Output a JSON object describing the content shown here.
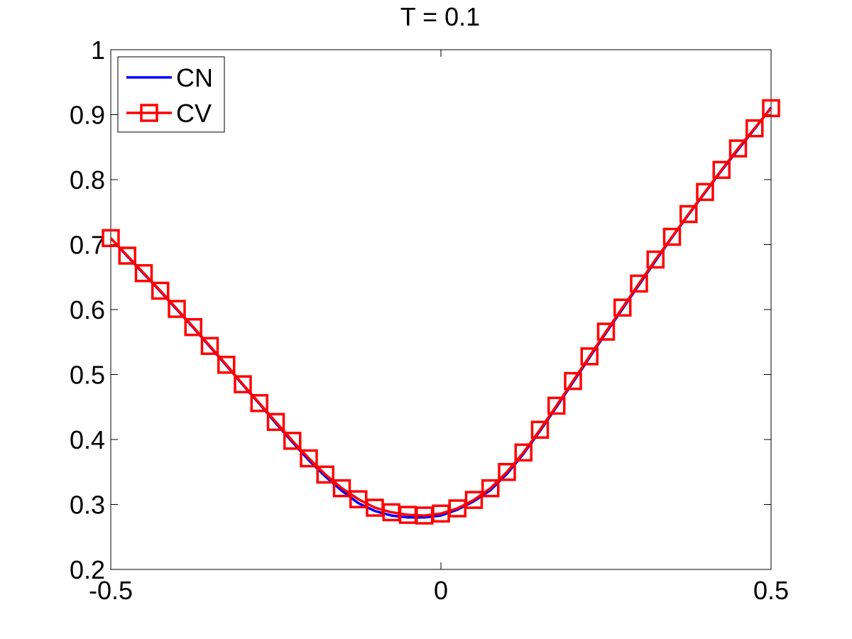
{
  "chart_data": {
    "type": "line",
    "title": "T = 0.1",
    "xlabel": "",
    "ylabel": "",
    "xlim": [
      -0.5,
      0.5
    ],
    "ylim": [
      0.2,
      1.0
    ],
    "xticks": [
      -0.5,
      0,
      0.5
    ],
    "xtick_labels": [
      "-0.5",
      "0",
      "0.5"
    ],
    "yticks": [
      0.2,
      0.3,
      0.4,
      0.5,
      0.6,
      0.7,
      0.8,
      0.9,
      1.0
    ],
    "ytick_labels": [
      "0.2",
      "0.3",
      "0.4",
      "0.5",
      "0.6",
      "0.7",
      "0.8",
      "0.9",
      "1"
    ],
    "grid": false,
    "legend_position": "top-left",
    "series": [
      {
        "name": "CN",
        "color": "#0000ff",
        "marker": "none",
        "x": [
          -0.5,
          -0.475,
          -0.45,
          -0.425,
          -0.4,
          -0.375,
          -0.35,
          -0.325,
          -0.3,
          -0.275,
          -0.25,
          -0.225,
          -0.2,
          -0.175,
          -0.15,
          -0.125,
          -0.1,
          -0.075,
          -0.05,
          -0.025,
          0.0,
          0.025,
          0.05,
          0.075,
          0.1,
          0.125,
          0.15,
          0.175,
          0.2,
          0.225,
          0.25,
          0.275,
          0.3,
          0.325,
          0.35,
          0.375,
          0.4,
          0.425,
          0.45,
          0.475,
          0.5
        ],
        "y": [
          0.71,
          0.682,
          0.655,
          0.628,
          0.6,
          0.572,
          0.543,
          0.514,
          0.484,
          0.455,
          0.425,
          0.396,
          0.368,
          0.343,
          0.321,
          0.302,
          0.29,
          0.283,
          0.28,
          0.28,
          0.283,
          0.292,
          0.305,
          0.322,
          0.347,
          0.378,
          0.413,
          0.45,
          0.488,
          0.526,
          0.564,
          0.601,
          0.638,
          0.675,
          0.711,
          0.746,
          0.78,
          0.814,
          0.846,
          0.878,
          0.911
        ]
      },
      {
        "name": "CV",
        "color": "#ff0000",
        "marker": "square",
        "x": [
          -0.5,
          -0.475,
          -0.45,
          -0.425,
          -0.4,
          -0.375,
          -0.35,
          -0.325,
          -0.3,
          -0.275,
          -0.25,
          -0.225,
          -0.2,
          -0.175,
          -0.15,
          -0.125,
          -0.1,
          -0.075,
          -0.05,
          -0.025,
          0.0,
          0.025,
          0.05,
          0.075,
          0.1,
          0.125,
          0.15,
          0.175,
          0.2,
          0.225,
          0.25,
          0.275,
          0.3,
          0.325,
          0.35,
          0.375,
          0.4,
          0.425,
          0.45,
          0.475,
          0.5
        ],
        "y": [
          0.71,
          0.683,
          0.656,
          0.629,
          0.601,
          0.573,
          0.544,
          0.515,
          0.485,
          0.456,
          0.427,
          0.398,
          0.371,
          0.346,
          0.325,
          0.308,
          0.295,
          0.288,
          0.284,
          0.283,
          0.286,
          0.294,
          0.307,
          0.325,
          0.35,
          0.38,
          0.415,
          0.452,
          0.49,
          0.528,
          0.566,
          0.603,
          0.64,
          0.677,
          0.712,
          0.747,
          0.781,
          0.815,
          0.848,
          0.879,
          0.91
        ]
      }
    ]
  }
}
